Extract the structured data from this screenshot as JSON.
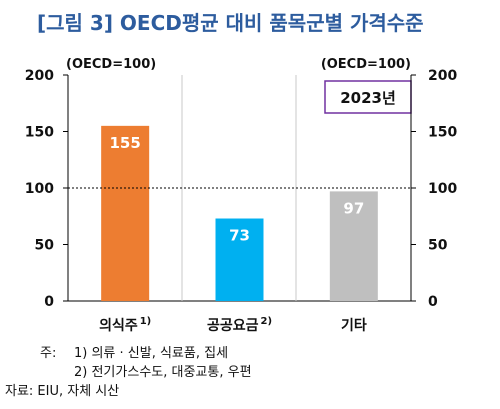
{
  "chart_data": {
    "type": "bar",
    "title": "[그림 3] OECD평균 대비 품목군별 가격수준",
    "unit_left": "(OECD=100)",
    "unit_right": "(OECD=100)",
    "year_label": "2023년",
    "categories": [
      "의식주",
      "공공요금",
      "기타"
    ],
    "category_superscripts": [
      "1)",
      "2)",
      ""
    ],
    "values": [
      155,
      73,
      97
    ],
    "bar_colors": [
      "#ed7d31",
      "#00b0f0",
      "#bfbfbf"
    ],
    "ylim": [
      0,
      200
    ],
    "yticks": [
      0,
      50,
      100,
      150,
      200
    ],
    "reference_line": 100,
    "grid": false,
    "xlabel": "",
    "ylabel": ""
  },
  "notes": {
    "note_prefix": "주:",
    "note1": "1) 의류 · 신발, 식료품, 집세",
    "note2": "2) 전기가스수도, 대중교통, 우편",
    "source": "자료: EIU, 자체 시산"
  },
  "colors": {
    "title": "#2d5c9e",
    "year_box_border": "#7030a0",
    "reference_line": "#000000"
  }
}
